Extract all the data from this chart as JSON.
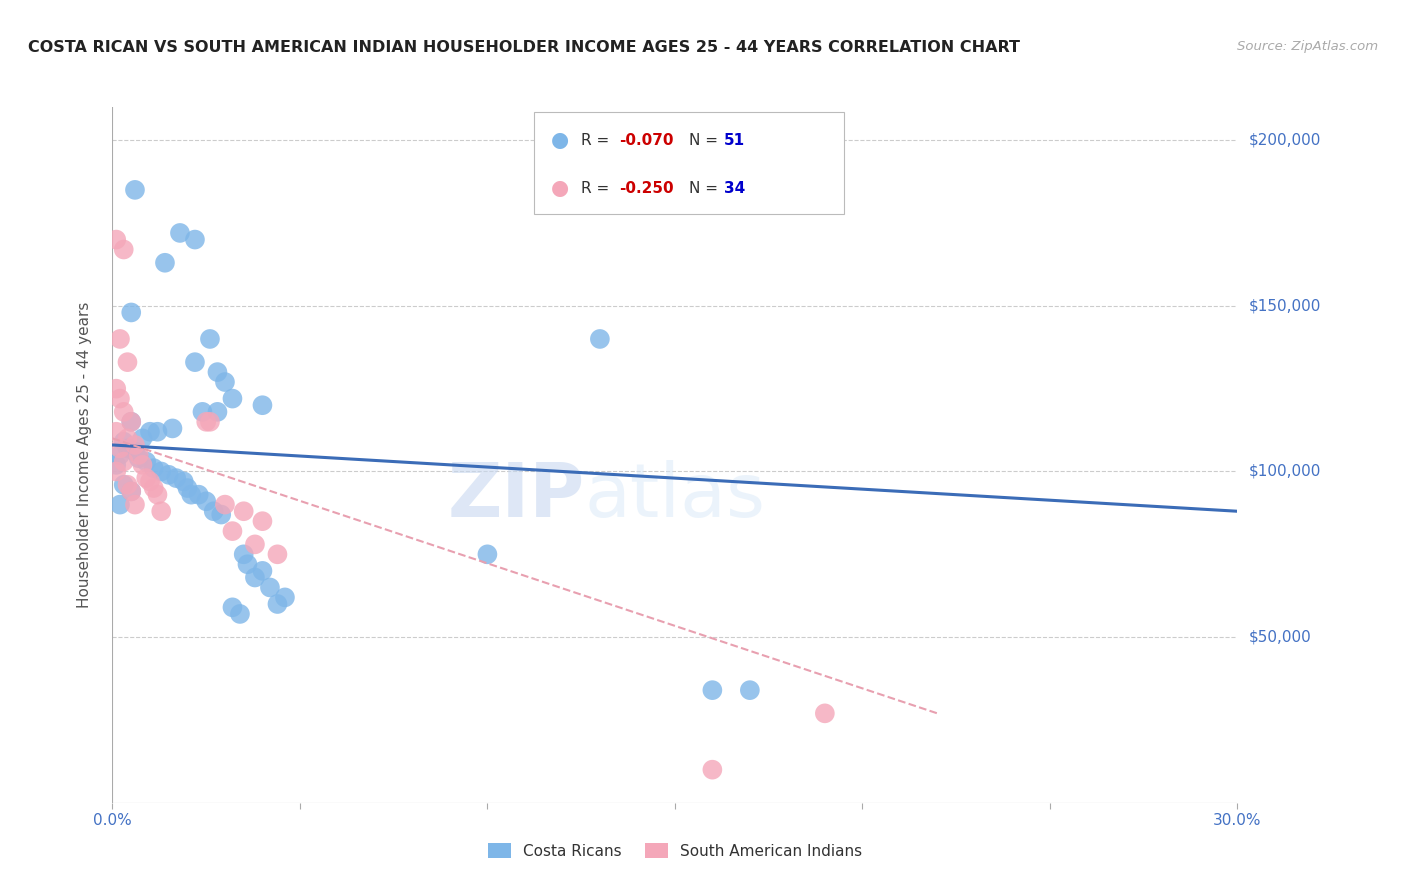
{
  "title": "COSTA RICAN VS SOUTH AMERICAN INDIAN HOUSEHOLDER INCOME AGES 25 - 44 YEARS CORRELATION CHART",
  "source": "Source: ZipAtlas.com",
  "ylabel": "Householder Income Ages 25 - 44 years",
  "xlim": [
    0.0,
    0.3
  ],
  "ylim": [
    0,
    210000
  ],
  "color_blue": "#7EB6E8",
  "color_pink": "#F4A7B9",
  "line_blue": "#3B6CB7",
  "line_pink": "#E8A0B0",
  "axis_color": "#4472C4",
  "grid_color": "#CCCCCC",
  "title_color": "#333333",
  "watermark_zip": "ZIP",
  "watermark_atlas": "atlas",
  "blue_trend_x": [
    0.0,
    0.3
  ],
  "blue_trend_y": [
    108000,
    88000
  ],
  "pink_trend_x": [
    0.0,
    0.22
  ],
  "pink_trend_y": [
    110000,
    27000
  ],
  "blue_points": [
    [
      0.006,
      185000
    ],
    [
      0.018,
      172000
    ],
    [
      0.022,
      170000
    ],
    [
      0.014,
      163000
    ],
    [
      0.13,
      140000
    ],
    [
      0.005,
      148000
    ],
    [
      0.026,
      140000
    ],
    [
      0.022,
      133000
    ],
    [
      0.028,
      130000
    ],
    [
      0.03,
      127000
    ],
    [
      0.032,
      122000
    ],
    [
      0.04,
      120000
    ],
    [
      0.024,
      118000
    ],
    [
      0.028,
      118000
    ],
    [
      0.005,
      115000
    ],
    [
      0.016,
      113000
    ],
    [
      0.01,
      112000
    ],
    [
      0.012,
      112000
    ],
    [
      0.008,
      110000
    ],
    [
      0.003,
      109000
    ],
    [
      0.004,
      107000
    ],
    [
      0.006,
      106000
    ],
    [
      0.002,
      105000
    ],
    [
      0.007,
      104000
    ],
    [
      0.009,
      103000
    ],
    [
      0.001,
      102000
    ],
    [
      0.011,
      101000
    ],
    [
      0.013,
      100000
    ],
    [
      0.015,
      99000
    ],
    [
      0.017,
      98000
    ],
    [
      0.019,
      97000
    ],
    [
      0.003,
      96000
    ],
    [
      0.02,
      95000
    ],
    [
      0.005,
      94000
    ],
    [
      0.021,
      93000
    ],
    [
      0.023,
      93000
    ],
    [
      0.025,
      91000
    ],
    [
      0.002,
      90000
    ],
    [
      0.027,
      88000
    ],
    [
      0.029,
      87000
    ],
    [
      0.035,
      75000
    ],
    [
      0.036,
      72000
    ],
    [
      0.04,
      70000
    ],
    [
      0.038,
      68000
    ],
    [
      0.042,
      65000
    ],
    [
      0.046,
      62000
    ],
    [
      0.044,
      60000
    ],
    [
      0.032,
      59000
    ],
    [
      0.034,
      57000
    ],
    [
      0.1,
      75000
    ],
    [
      0.16,
      34000
    ],
    [
      0.17,
      34000
    ]
  ],
  "pink_points": [
    [
      0.001,
      170000
    ],
    [
      0.003,
      167000
    ],
    [
      0.002,
      140000
    ],
    [
      0.004,
      133000
    ],
    [
      0.001,
      125000
    ],
    [
      0.002,
      122000
    ],
    [
      0.003,
      118000
    ],
    [
      0.005,
      115000
    ],
    [
      0.001,
      112000
    ],
    [
      0.004,
      110000
    ],
    [
      0.006,
      108000
    ],
    [
      0.002,
      107000
    ],
    [
      0.007,
      105000
    ],
    [
      0.003,
      103000
    ],
    [
      0.008,
      102000
    ],
    [
      0.001,
      100000
    ],
    [
      0.009,
      98000
    ],
    [
      0.01,
      97000
    ],
    [
      0.004,
      96000
    ],
    [
      0.011,
      95000
    ],
    [
      0.005,
      94000
    ],
    [
      0.012,
      93000
    ],
    [
      0.006,
      90000
    ],
    [
      0.013,
      88000
    ],
    [
      0.025,
      115000
    ],
    [
      0.026,
      115000
    ],
    [
      0.03,
      90000
    ],
    [
      0.035,
      88000
    ],
    [
      0.04,
      85000
    ],
    [
      0.032,
      82000
    ],
    [
      0.038,
      78000
    ],
    [
      0.044,
      75000
    ],
    [
      0.16,
      10000
    ],
    [
      0.19,
      27000
    ]
  ]
}
